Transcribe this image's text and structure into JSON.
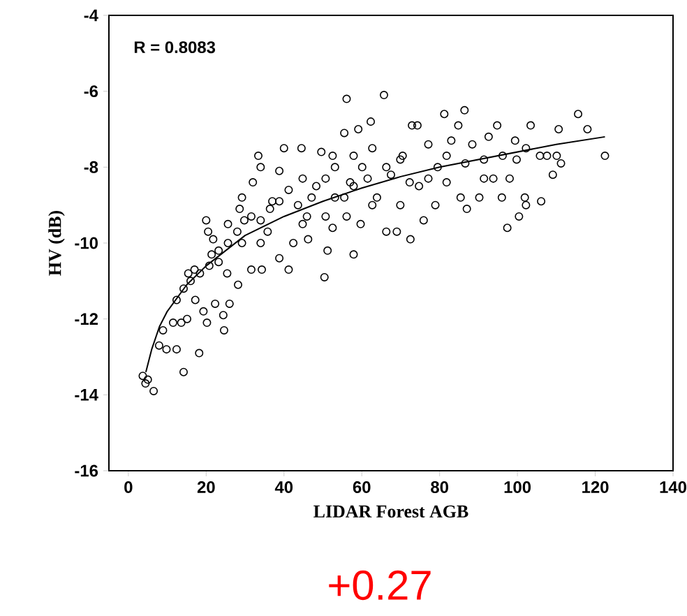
{
  "chart_data": {
    "type": "scatter",
    "xlabel": "LIDAR Forest AGB",
    "ylabel": "HV (dB)",
    "annotations": [
      "R = 0.8083",
      "+0.27"
    ],
    "xlim": [
      -5,
      140
    ],
    "ylim": [
      -16,
      -4
    ],
    "xticks": [
      0,
      20,
      40,
      60,
      80,
      100,
      120,
      140
    ],
    "yticks": [
      -16,
      -14,
      -12,
      -10,
      -8,
      -6,
      -4
    ],
    "marker": "circle",
    "series": [
      {
        "color": "#000000",
        "x": [
          3.7,
          5.0,
          6.5,
          4.4,
          7.9,
          9.8,
          12.4,
          14.2,
          18.2,
          8.9,
          11.5,
          13.6,
          15.1,
          17.2,
          19.3,
          20.2,
          22.3,
          24.4,
          24.6,
          26.0,
          15.4,
          17.0,
          20.0,
          20.5,
          21.8,
          21.4,
          23.2,
          25.6,
          25.4,
          28.2,
          28.6,
          29.2,
          31.6,
          32.0,
          33.4,
          34.0,
          34.3,
          35.8,
          37.0,
          38.8,
          40.0,
          41.2,
          42.4,
          44.5,
          44.8,
          46.2,
          47.1,
          49.6,
          50.4,
          51.2,
          52.5,
          52.5,
          53.1,
          55.5,
          56.1,
          56.1,
          57.0,
          57.9,
          59.1,
          59.7,
          60.1,
          62.3,
          62.7,
          62.7,
          65.7,
          66.3,
          67.5,
          69.0,
          69.9,
          70.5,
          72.5,
          72.9,
          74.3,
          74.7,
          75.9,
          77.1,
          78.9,
          79.5,
          81.2,
          81.8,
          83.0,
          84.8,
          86.4,
          85.4,
          87.0,
          88.4,
          90.2,
          91.4,
          92.6,
          93.8,
          94.8,
          96.0,
          97.4,
          98.0,
          99.4,
          100.4,
          101.9,
          102.2,
          103.4,
          102.2,
          105.8,
          106.1,
          107.6,
          109.1,
          110.6,
          111.2,
          110.1,
          115.6,
          118.0,
          122.5,
          12.4,
          14.2,
          16.0,
          18.4,
          20.8,
          23.2,
          25.6,
          28.0,
          29.8,
          31.6,
          34.0,
          36.4,
          38.8,
          41.2,
          43.6,
          45.9,
          48.3,
          50.7,
          53.1,
          55.5,
          57.9,
          61.5,
          63.9,
          66.3,
          69.9,
          72.3,
          77.1,
          81.8,
          86.6,
          91.4,
          96.2,
          99.8,
          38.8,
          34.0,
          29.2,
          44.8,
          50.7,
          57.9
        ],
        "values": [
          -13.5,
          -13.6,
          -13.9,
          -13.7,
          -12.7,
          -12.8,
          -12.8,
          -13.4,
          -12.9,
          -12.3,
          -12.1,
          -12.1,
          -12.0,
          -11.5,
          -11.8,
          -12.1,
          -11.6,
          -11.9,
          -12.3,
          -11.6,
          -10.8,
          -10.7,
          -9.4,
          -9.7,
          -9.9,
          -10.3,
          -10.5,
          -9.5,
          -10.8,
          -11.1,
          -9.1,
          -10.0,
          -10.7,
          -8.4,
          -7.7,
          -8.0,
          -10.7,
          -9.7,
          -8.9,
          -8.1,
          -7.5,
          -10.7,
          -10.0,
          -7.5,
          -8.3,
          -9.9,
          -8.8,
          -7.6,
          -10.9,
          -10.2,
          -9.6,
          -7.7,
          -8.8,
          -7.1,
          -6.2,
          -9.3,
          -8.4,
          -10.3,
          -7.0,
          -9.5,
          -8.0,
          -6.8,
          -7.5,
          -9.0,
          -6.1,
          -9.7,
          -8.2,
          -9.7,
          -9.0,
          -7.7,
          -9.9,
          -6.9,
          -6.9,
          -8.5,
          -9.4,
          -7.4,
          -9.0,
          -8.0,
          -6.6,
          -8.4,
          -7.3,
          -6.9,
          -6.5,
          -8.8,
          -9.1,
          -7.4,
          -8.8,
          -7.8,
          -7.2,
          -8.3,
          -6.9,
          -8.8,
          -9.6,
          -8.3,
          -7.3,
          -9.3,
          -8.8,
          -9.0,
          -6.9,
          -7.5,
          -7.7,
          -8.9,
          -7.7,
          -8.2,
          -7.0,
          -7.9,
          -7.7,
          -6.6,
          -7.0,
          -7.7,
          -11.5,
          -11.2,
          -11.0,
          -10.8,
          -10.6,
          -10.2,
          -10.0,
          -9.7,
          -9.4,
          -9.3,
          -9.4,
          -9.1,
          -8.9,
          -8.6,
          -9.0,
          -9.3,
          -8.5,
          -8.3,
          -8.0,
          -8.8,
          -8.5,
          -8.3,
          -8.8,
          -8.0,
          -7.8,
          -8.4,
          -8.3,
          -7.7,
          -7.9,
          -8.3,
          -7.7,
          -7.8,
          -10.4,
          -10.0,
          -8.8,
          -9.5,
          -9.3,
          -7.7
        ]
      },
      {
        "type": "line",
        "color": "#000000",
        "marker": "none",
        "line_style": "solid",
        "x": [
          4.5,
          6,
          8,
          10,
          15,
          20,
          30,
          40,
          50,
          60,
          70,
          80,
          90,
          100,
          110,
          122.5
        ],
        "values": [
          -13.4,
          -12.8,
          -12.2,
          -11.8,
          -11.1,
          -10.6,
          -9.8,
          -9.3,
          -8.9,
          -8.55,
          -8.25,
          -8.0,
          -7.8,
          -7.6,
          -7.4,
          -7.2
        ]
      }
    ]
  }
}
